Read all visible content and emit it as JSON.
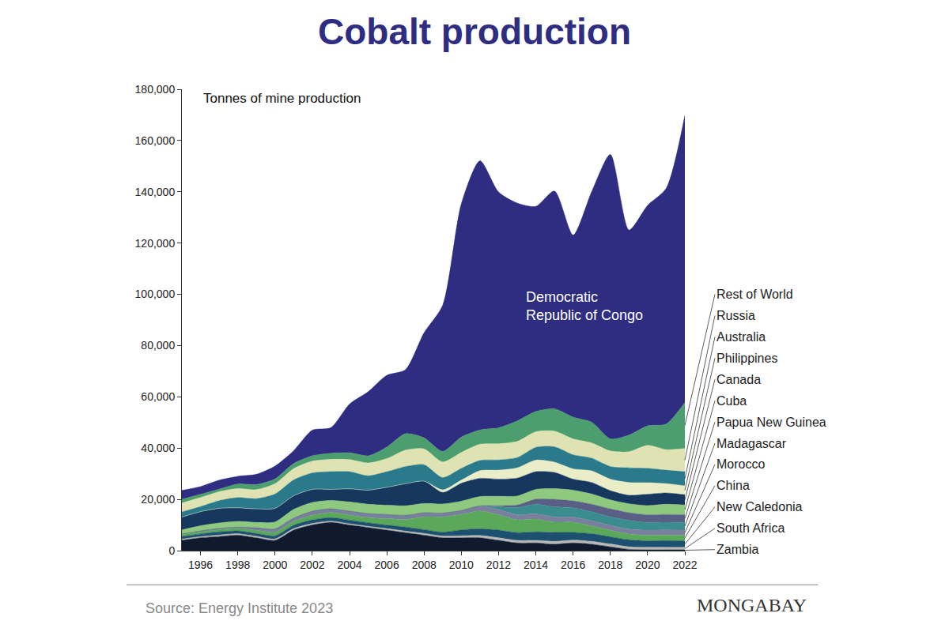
{
  "chart_data": {
    "type": "area",
    "title": "Cobalt production",
    "ylabel": "Tonnes of mine production",
    "source": "Source: Energy Institute 2023",
    "credit": "MONGABAY",
    "stacked": true,
    "grid": false,
    "x": [
      1995,
      1996,
      1997,
      1998,
      1999,
      2000,
      2001,
      2002,
      2003,
      2004,
      2005,
      2006,
      2007,
      2008,
      2009,
      2010,
      2011,
      2012,
      2013,
      2014,
      2015,
      2016,
      2017,
      2018,
      2019,
      2020,
      2021,
      2022
    ],
    "xlim": [
      1995,
      2022
    ],
    "xticks": [
      1996,
      1998,
      2000,
      2002,
      2004,
      2006,
      2008,
      2010,
      2012,
      2014,
      2016,
      2018,
      2020,
      2022
    ],
    "ylim": [
      0,
      180000
    ],
    "yticks": [
      0,
      {
        "value": 20000,
        "label": "20,000"
      },
      {
        "value": 40000,
        "label": "40,000"
      },
      {
        "value": 60000,
        "label": "60,000"
      },
      {
        "value": 80000,
        "label": "80,000"
      },
      {
        "value": 100000,
        "label": "100,000"
      },
      {
        "value": 120000,
        "label": "120,000"
      },
      {
        "value": 140000,
        "label": "140,000"
      },
      {
        "value": 160000,
        "label": "160,000"
      },
      {
        "value": 180000,
        "label": "180,000"
      }
    ],
    "series": [
      {
        "name": "Zambia",
        "color": "#101a2e",
        "values": [
          4000,
          5000,
          5500,
          6000,
          5000,
          4000,
          8000,
          10000,
          11000,
          10000,
          9000,
          8000,
          7000,
          6000,
          5000,
          5000,
          5000,
          4000,
          3000,
          3000,
          2500,
          3000,
          2500,
          1500,
          500,
          300,
          300,
          300
        ]
      },
      {
        "name": "South Africa",
        "color": "#b8b8b8",
        "values": [
          500,
          500,
          600,
          600,
          600,
          600,
          600,
          600,
          500,
          500,
          500,
          600,
          600,
          700,
          700,
          800,
          900,
          1000,
          1000,
          1000,
          1100,
          1100,
          1100,
          1100,
          1000,
          1000,
          1000,
          1000
        ]
      },
      {
        "name": "New Caledonia",
        "color": "#1d4f6e",
        "values": [
          1000,
          1000,
          1200,
          1100,
          1100,
          1200,
          1300,
          1400,
          1400,
          1400,
          1400,
          1400,
          1600,
          1500,
          1500,
          2300,
          2600,
          3000,
          3000,
          3300,
          3500,
          3000,
          3000,
          2800,
          2700,
          2500,
          2600,
          2500
        ]
      },
      {
        "name": "China",
        "color": "#5aa85a",
        "values": [
          700,
          800,
          900,
          1000,
          1200,
          1400,
          1500,
          1800,
          2000,
          2000,
          2000,
          2500,
          3000,
          5000,
          6000,
          6000,
          7000,
          6000,
          5000,
          5000,
          4000,
          4000,
          3000,
          2500,
          2300,
          2200,
          2200,
          2200
        ]
      },
      {
        "name": "Morocco",
        "color": "#7b7f9e",
        "values": [
          300,
          400,
          500,
          500,
          1000,
          1300,
          1300,
          1600,
          1400,
          1500,
          1600,
          1600,
          1600,
          1600,
          1500,
          1600,
          2000,
          2000,
          2000,
          2000,
          2000,
          2000,
          2000,
          2000,
          1900,
          2000,
          2000,
          2000
        ]
      },
      {
        "name": "Madagascar",
        "color": "#3b8c8c",
        "values": [
          0,
          0,
          0,
          0,
          0,
          0,
          0,
          0,
          0,
          0,
          0,
          0,
          0,
          0,
          0,
          0,
          0,
          1000,
          2800,
          3800,
          3900,
          3600,
          3500,
          3300,
          3400,
          3000,
          3000,
          3000
        ]
      },
      {
        "name": "Papua New Guinea",
        "color": "#5a5f86",
        "values": [
          0,
          0,
          0,
          0,
          0,
          0,
          0,
          0,
          0,
          0,
          0,
          0,
          0,
          0,
          0,
          0,
          0,
          500,
          1000,
          2000,
          3000,
          2700,
          3000,
          3100,
          3000,
          3000,
          3000,
          3000
        ]
      },
      {
        "name": "Cuba",
        "color": "#8fc97f",
        "values": [
          1600,
          2000,
          2100,
          2200,
          2100,
          2700,
          3400,
          3400,
          3300,
          3600,
          3600,
          3600,
          3700,
          3600,
          3500,
          3600,
          3600,
          3700,
          3500,
          3800,
          4200,
          4200,
          4000,
          3500,
          3500,
          3600,
          4000,
          3800
        ]
      },
      {
        "name": "Canada",
        "color": "#16375e",
        "values": [
          5000,
          5500,
          5700,
          5300,
          5300,
          5300,
          5300,
          5100,
          4300,
          5100,
          5500,
          7000,
          8600,
          8700,
          4500,
          7000,
          7100,
          6700,
          7000,
          6900,
          6300,
          4300,
          4500,
          3600,
          3300,
          4400,
          4400,
          4000
        ]
      },
      {
        "name": "Philippines",
        "color": "#eaeec8",
        "values": [
          0,
          0,
          0,
          0,
          0,
          0,
          0,
          0,
          0,
          0,
          0,
          0,
          0,
          0,
          1000,
          1200,
          3000,
          3500,
          4000,
          4500,
          4000,
          4000,
          4500,
          4500,
          5000,
          4500,
          3600,
          3500
        ]
      },
      {
        "name": "Australia",
        "color": "#2a7a8c",
        "values": [
          2000,
          2000,
          3000,
          4000,
          4000,
          5600,
          6200,
          6400,
          6900,
          6700,
          5600,
          6100,
          6700,
          6400,
          4800,
          4600,
          4000,
          4000,
          4000,
          5000,
          6000,
          5500,
          5000,
          4900,
          5700,
          5600,
          5300,
          5500
        ]
      },
      {
        "name": "Russia",
        "color": "#dfe3b4",
        "values": [
          3500,
          3500,
          3500,
          3500,
          3500,
          4000,
          4400,
          4600,
          4800,
          4700,
          5000,
          5100,
          6400,
          6200,
          6100,
          6200,
          6300,
          6300,
          6300,
          6100,
          6100,
          6200,
          5900,
          6100,
          6300,
          9000,
          8000,
          9000
        ]
      },
      {
        "name": "Rest of World",
        "color": "#4d9e6e",
        "values": [
          1400,
          1300,
          1000,
          1800,
          2000,
          1900,
          2000,
          2100,
          2400,
          2700,
          2800,
          4500,
          6400,
          4300,
          4100,
          6000,
          5600,
          6200,
          8000,
          7900,
          8700,
          8500,
          8100,
          4700,
          6500,
          7600,
          10000,
          18000
        ]
      },
      {
        "name": "Democratic Republic of Congo",
        "color": "#2e2d82",
        "values": [
          3500,
          3000,
          3500,
          3000,
          4000,
          5000,
          5000,
          10000,
          10000,
          19000,
          25000,
          28000,
          25000,
          41000,
          57000,
          91000,
          105000,
          92000,
          85000,
          80000,
          85000,
          71000,
          90000,
          111000,
          80000,
          86000,
          92000,
          112000
        ]
      }
    ]
  }
}
